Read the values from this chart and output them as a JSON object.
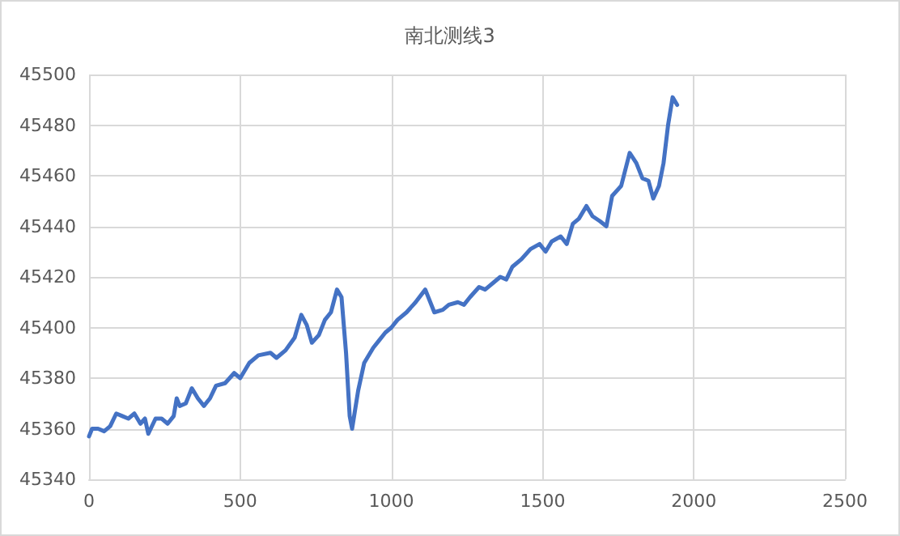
{
  "chart_data": {
    "type": "line",
    "title": "南北测线3",
    "x": [
      0,
      10,
      30,
      50,
      70,
      90,
      110,
      130,
      150,
      170,
      185,
      196,
      220,
      240,
      260,
      280,
      290,
      300,
      320,
      340,
      360,
      380,
      400,
      420,
      450,
      480,
      500,
      530,
      560,
      600,
      620,
      650,
      680,
      702,
      720,
      737,
      760,
      780,
      800,
      820,
      835,
      850,
      862,
      870,
      890,
      910,
      940,
      960,
      980,
      1000,
      1020,
      1050,
      1080,
      1112,
      1142,
      1170,
      1190,
      1220,
      1240,
      1260,
      1290,
      1310,
      1340,
      1360,
      1380,
      1400,
      1430,
      1460,
      1490,
      1510,
      1530,
      1560,
      1580,
      1600,
      1620,
      1645,
      1665,
      1690,
      1711,
      1730,
      1760,
      1788,
      1810,
      1830,
      1850,
      1866,
      1885,
      1900,
      1915,
      1930,
      1945
    ],
    "series": [
      {
        "color": "#4472c4",
        "values": [
          45357,
          45360,
          45360,
          45359,
          45361,
          45366,
          45365,
          45364,
          45366,
          45362,
          45364,
          45358,
          45364,
          45364,
          45362,
          45365,
          45372,
          45369,
          45370,
          45376,
          45372,
          45369,
          45372,
          45377,
          45378,
          45382,
          45380,
          45386,
          45389,
          45390,
          45388,
          45391,
          45396,
          45405,
          45401,
          45394,
          45397,
          45403,
          45406,
          45415,
          45412,
          45390,
          45365,
          45360,
          45375,
          45386,
          45392,
          45395,
          45398,
          45400,
          45403,
          45406,
          45410,
          45415,
          45406,
          45407,
          45409,
          45410,
          45409,
          45412,
          45416,
          45415,
          45418,
          45420,
          45419,
          45424,
          45427,
          45431,
          45433,
          45430,
          45434,
          45436,
          45433,
          45441,
          45443,
          45448,
          45444,
          45442,
          45440,
          45452,
          45456,
          45469,
          45465,
          45459,
          45458,
          45451,
          45456,
          45465,
          45480,
          45491,
          45488
        ]
      }
    ],
    "xlim": [
      0,
      2500
    ],
    "xticks": [
      0,
      500,
      1000,
      1500,
      2000,
      2500
    ],
    "ylim": [
      45340,
      45500
    ],
    "yticks": [
      45340,
      45360,
      45380,
      45400,
      45420,
      45440,
      45460,
      45480,
      45500
    ],
    "grid": true,
    "marker": "none",
    "line_style": "solid"
  }
}
